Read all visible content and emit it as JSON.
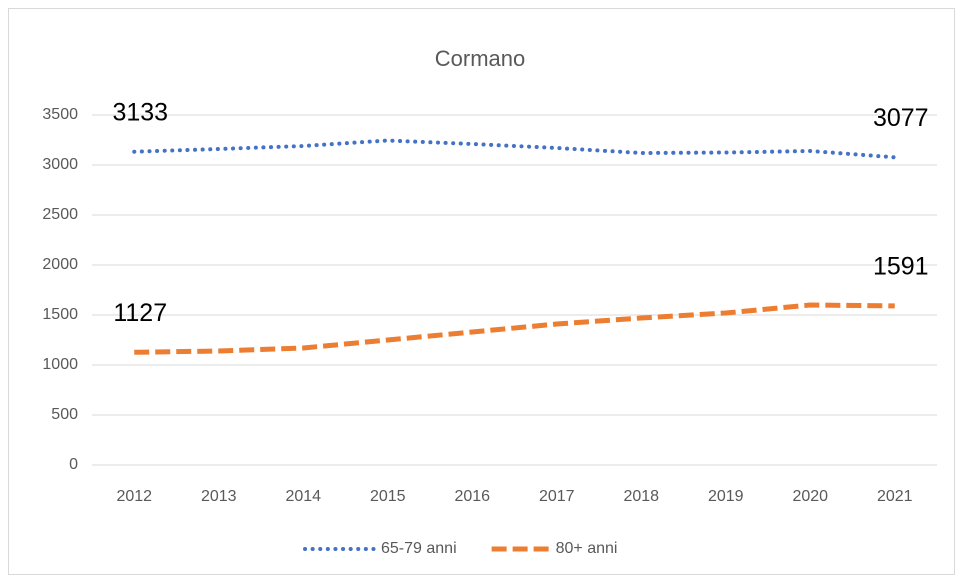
{
  "chart_data": {
    "type": "line",
    "title": "Cormano",
    "categories": [
      "2012",
      "2013",
      "2014",
      "2015",
      "2016",
      "2017",
      "2018",
      "2019",
      "2020",
      "2021"
    ],
    "series": [
      {
        "name": "65-79 anni",
        "color": "#4472c4",
        "line_style": "dotted",
        "values": [
          3133,
          3160,
          3190,
          3245,
          3210,
          3170,
          3120,
          3125,
          3140,
          3077
        ]
      },
      {
        "name": "80+ anni",
        "color": "#ed7d31",
        "line_style": "dashed",
        "values": [
          1127,
          1140,
          1170,
          1250,
          1330,
          1410,
          1470,
          1520,
          1600,
          1591
        ]
      }
    ],
    "data_labels": "ends",
    "ylim": [
      0,
      3500
    ],
    "yticks": [
      0,
      500,
      1000,
      1500,
      2000,
      2500,
      3000,
      3500
    ],
    "grid": true,
    "legend": "bottom"
  }
}
